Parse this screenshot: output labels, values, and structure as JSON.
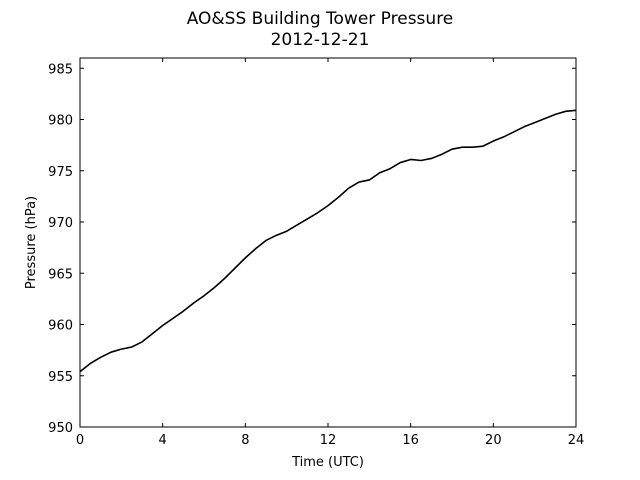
{
  "chart_data": {
    "type": "line",
    "title": "AO&SS Building Tower Pressure",
    "subtitle": "2012-12-21",
    "xlabel": "Time (UTC)",
    "ylabel": "Pressure (hPa)",
    "xlim": [
      0,
      24
    ],
    "ylim": [
      950,
      986
    ],
    "xticks": [
      0,
      4,
      8,
      12,
      16,
      20,
      24
    ],
    "yticks": [
      950,
      955,
      960,
      965,
      970,
      975,
      980,
      985
    ],
    "grid": false,
    "series": [
      {
        "color": "#000000",
        "x": [
          0,
          0.5,
          1,
          1.5,
          2,
          2.5,
          3,
          3.5,
          4,
          4.5,
          5,
          5.5,
          6,
          6.5,
          7,
          7.5,
          8,
          8.5,
          9,
          9.5,
          10,
          10.5,
          11,
          11.5,
          12,
          12.5,
          13,
          13.5,
          14,
          14.5,
          15,
          15.5,
          16,
          16.5,
          17,
          17.5,
          18,
          18.5,
          19,
          19.5,
          20,
          20.5,
          21,
          21.5,
          22,
          22.5,
          23,
          23.5,
          24
        ],
        "y": [
          955.4,
          956.2,
          956.8,
          957.3,
          957.6,
          957.8,
          958.3,
          959.1,
          959.9,
          960.6,
          961.3,
          962.1,
          962.8,
          963.6,
          964.5,
          965.5,
          966.5,
          967.4,
          968.2,
          968.7,
          969.1,
          969.7,
          970.3,
          970.9,
          971.6,
          972.4,
          973.3,
          973.9,
          974.1,
          974.8,
          975.2,
          975.8,
          976.1,
          976.0,
          976.2,
          976.6,
          977.1,
          977.3,
          977.3,
          977.4,
          977.9,
          978.3,
          978.8,
          979.3,
          979.7,
          980.1,
          980.5,
          980.8,
          980.9
        ]
      }
    ]
  }
}
